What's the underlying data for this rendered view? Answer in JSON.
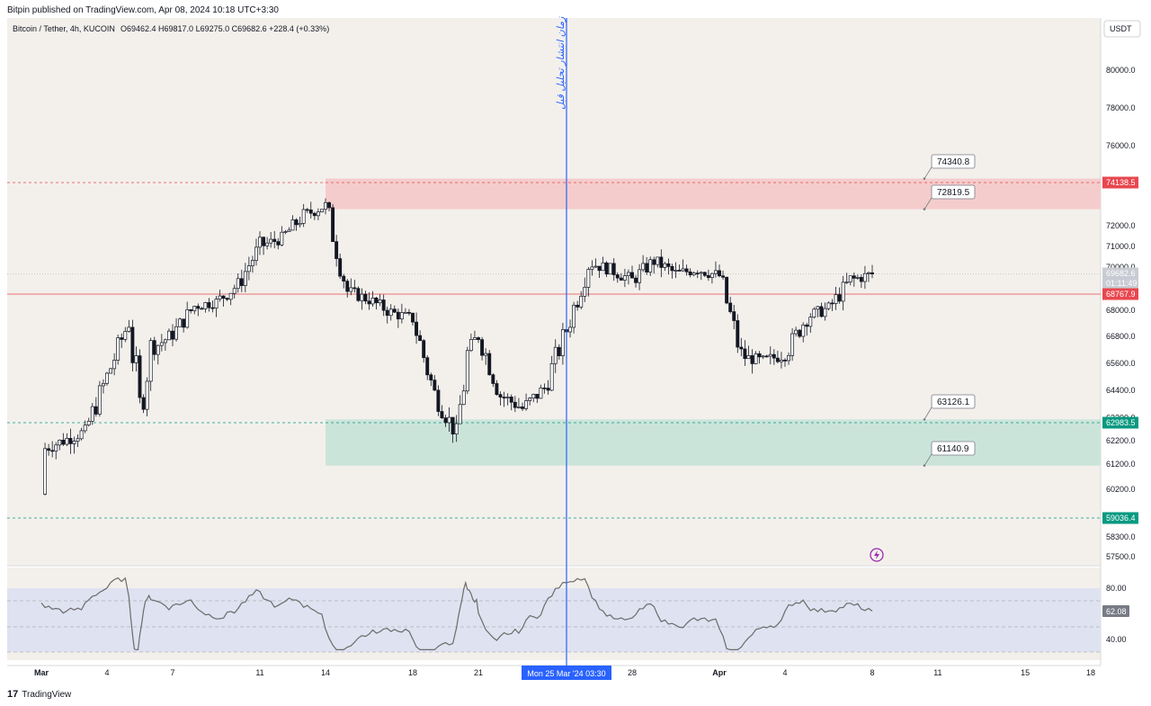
{
  "header": {
    "published_by": "Bitpin published on TradingView.com, Apr 08, 2024 10:18 UTC+3:30"
  },
  "legend": {
    "symbol": "Bitcoin / Tether, 4h, KUCOIN",
    "ohlc": "O69462.4  H69817.0  L69275.0  C69682.6  +228.4 (+0.33%)"
  },
  "currency_button": "USDT",
  "vertical_line_label": "زمان انتشار تحلیل قبل",
  "footer": {
    "brand": "TradingView"
  },
  "colors": {
    "bg": "#f3f0ec",
    "red_zone": "#f5cccc",
    "green_zone": "#cbe4da",
    "red": "#e8474e",
    "green": "#089981",
    "blue": "#2962ff",
    "rsi_band": "#dfe2f0",
    "rsi_line": "#6b6b6b"
  },
  "chart_data": {
    "type": "candlestick",
    "timeframe": "4h",
    "y_ticks": [
      80000,
      78000,
      76000,
      72000,
      71000,
      70000,
      68000,
      66800,
      65600,
      64400,
      63200,
      62200,
      61200,
      60200,
      59000,
      58300,
      57500
    ],
    "x_ticks": [
      "Mar",
      "4",
      "7",
      "11",
      "14",
      "18",
      "21",
      "25",
      "28",
      "Apr",
      "4",
      "8",
      "11",
      "15",
      "18"
    ],
    "price_tags": [
      {
        "label": "74138.5",
        "value": 74138.5,
        "color": "red"
      },
      {
        "label": "69682.6",
        "value": 69682.6,
        "color": "grey"
      },
      {
        "label": "01:11:49",
        "value": null,
        "color": "grey"
      },
      {
        "label": "68767.9",
        "value": 68767.9,
        "color": "red"
      },
      {
        "label": "62983.5",
        "value": 62983.5,
        "color": "green"
      },
      {
        "label": "59036.4",
        "value": 59036.4,
        "color": "green"
      }
    ],
    "callouts": [
      {
        "label": "74340.8",
        "value": 74340.8
      },
      {
        "label": "72819.5",
        "value": 72819.5
      },
      {
        "label": "63126.1",
        "value": 63126.1
      },
      {
        "label": "61140.9",
        "value": 61140.9
      }
    ],
    "zones": [
      {
        "name": "supply",
        "from": 72819.5,
        "to": 74340.8,
        "start_date": "Mar 14"
      },
      {
        "name": "demand",
        "from": 61140.9,
        "to": 63126.1,
        "start_date": "Mar 14"
      }
    ],
    "horizontal_lines": [
      {
        "value": 74138.5,
        "style": "dashed",
        "color": "red"
      },
      {
        "value": 68767.9,
        "style": "solid",
        "color": "red"
      },
      {
        "value": 62983.5,
        "style": "dashed",
        "color": "green"
      },
      {
        "value": 59036.4,
        "style": "dashed",
        "color": "green"
      }
    ],
    "vertical_line": {
      "date": "Mon 25 Mar '24  03:30"
    },
    "close_series": [
      {
        "date": "Mar 1",
        "close": 61800
      },
      {
        "date": "Mar 2",
        "close": 62200
      },
      {
        "date": "Mar 3",
        "close": 62600
      },
      {
        "date": "Mar 4",
        "close": 65000
      },
      {
        "date": "Mar 5",
        "close": 67500
      },
      {
        "date": "Mar 5.5",
        "close": 63500
      },
      {
        "date": "Mar 6",
        "close": 66200
      },
      {
        "date": "Mar 7",
        "close": 66900
      },
      {
        "date": "Mar 8",
        "close": 68200
      },
      {
        "date": "Mar 9",
        "close": 68400
      },
      {
        "date": "Mar 10",
        "close": 69200
      },
      {
        "date": "Mar 11",
        "close": 71000
      },
      {
        "date": "Mar 12",
        "close": 71400
      },
      {
        "date": "Mar 13",
        "close": 72500
      },
      {
        "date": "Mar 14",
        "close": 73000
      },
      {
        "date": "Mar 15",
        "close": 68900
      },
      {
        "date": "Mar 16",
        "close": 68500
      },
      {
        "date": "Mar 17",
        "close": 67900
      },
      {
        "date": "Mar 18",
        "close": 67600
      },
      {
        "date": "Mar 19",
        "close": 64200
      },
      {
        "date": "Mar 20",
        "close": 62500
      },
      {
        "date": "Mar 20.5",
        "close": 65900
      },
      {
        "date": "Mar 21",
        "close": 66900
      },
      {
        "date": "Mar 22",
        "close": 64200
      },
      {
        "date": "Mar 23",
        "close": 63600
      },
      {
        "date": "Mar 24",
        "close": 64500
      },
      {
        "date": "Mar 25",
        "close": 67100
      },
      {
        "date": "Mar 26",
        "close": 70200
      },
      {
        "date": "Mar 27",
        "close": 69900
      },
      {
        "date": "Mar 28",
        "close": 69400
      },
      {
        "date": "Mar 29",
        "close": 70300
      },
      {
        "date": "Mar 30",
        "close": 69700
      },
      {
        "date": "Mar 31",
        "close": 69900
      },
      {
        "date": "Apr 1",
        "close": 69600
      },
      {
        "date": "Apr 2",
        "close": 65900
      },
      {
        "date": "Apr 3",
        "close": 65700
      },
      {
        "date": "Apr 4",
        "close": 66000
      },
      {
        "date": "Apr 5",
        "close": 67700
      },
      {
        "date": "Apr 6",
        "close": 68100
      },
      {
        "date": "Apr 7",
        "close": 69400
      },
      {
        "date": "Apr 8",
        "close": 69682.6
      }
    ],
    "rsi": {
      "current": 62.08,
      "levels": [
        80.0,
        40.0
      ],
      "band_labels": [
        "80.00",
        "40.00"
      ],
      "current_label": "62.08"
    }
  }
}
